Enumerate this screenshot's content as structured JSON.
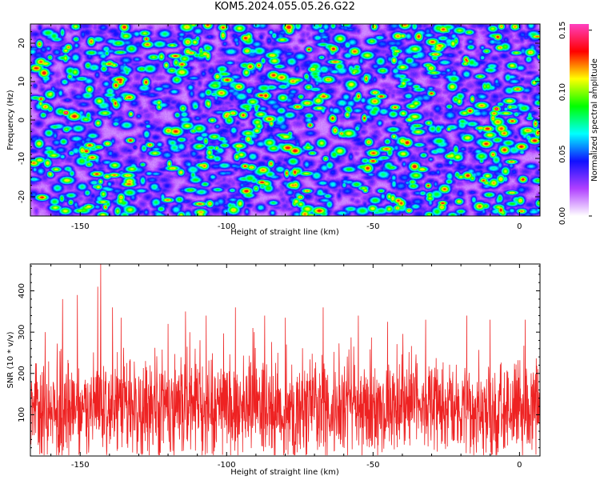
{
  "title": "KOM5.2024.055.05.26.G22",
  "chart_data": [
    {
      "type": "heatmap",
      "xlabel": "Height of straight line (km)",
      "ylabel": "Frequency (Hz)",
      "xlim": [
        -167,
        7
      ],
      "ylim": [
        -25,
        25
      ],
      "x_ticks": [
        -150,
        -100,
        -50,
        0
      ],
      "y_ticks": [
        -20,
        -10,
        0,
        10,
        20
      ],
      "colorbar": {
        "label": "Normalized spectral amplitude",
        "range": [
          0,
          0.155
        ],
        "ticks": [
          "0.00",
          "0.05",
          "0.10",
          "0.15"
        ],
        "colors": [
          "#ffffff",
          "#b040ff",
          "#1010ff",
          "#00ffff",
          "#00ff00",
          "#ffff00",
          "#ff0000",
          "#ff40c0"
        ]
      },
      "hotspots": [
        {
          "x": -155,
          "y": 2,
          "value": 0.15
        },
        {
          "x": -148,
          "y": -8,
          "value": 0.13
        },
        {
          "x": -8,
          "y": 3,
          "value": 0.14
        },
        {
          "x": -75,
          "y": -20,
          "value": 0.11
        },
        {
          "x": -140,
          "y": 15,
          "value": 0.09
        },
        {
          "x": -40,
          "y": 22,
          "value": 0.1
        }
      ]
    },
    {
      "type": "line",
      "xlabel": "Height of straight line (km)",
      "ylabel": "SNR (10 * v/v)",
      "xlim": [
        -167,
        7
      ],
      "ylim": [
        0,
        465
      ],
      "x_ticks": [
        -150,
        -100,
        -50,
        0
      ],
      "y_ticks": [
        100,
        200,
        300,
        400
      ],
      "series": [
        {
          "color": "#ee2222",
          "mean": 120,
          "noise_low": 40,
          "noise_high": 230,
          "peaks": [
            {
              "x": -143,
              "y": 465
            },
            {
              "x": -144,
              "y": 410
            },
            {
              "x": -156,
              "y": 380
            },
            {
              "x": -151,
              "y": 390
            },
            {
              "x": -139,
              "y": 360
            },
            {
              "x": -136,
              "y": 335
            },
            {
              "x": -114,
              "y": 350
            },
            {
              "x": -97,
              "y": 360
            },
            {
              "x": -87,
              "y": 340
            },
            {
              "x": -107,
              "y": 340
            },
            {
              "x": -80,
              "y": 335
            },
            {
              "x": -67,
              "y": 360
            },
            {
              "x": -55,
              "y": 340
            },
            {
              "x": -45,
              "y": 325
            },
            {
              "x": -32,
              "y": 330
            },
            {
              "x": -18,
              "y": 340
            },
            {
              "x": -10,
              "y": 330
            },
            {
              "x": 2,
              "y": 330
            },
            {
              "x": -120,
              "y": 320
            },
            {
              "x": -91,
              "y": 310
            }
          ]
        }
      ]
    }
  ]
}
